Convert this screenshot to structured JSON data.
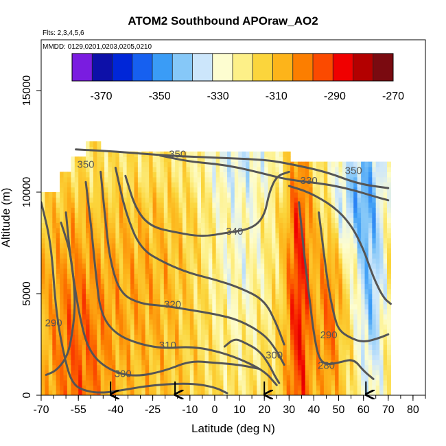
{
  "chart_data": {
    "type": "heatmap",
    "title": "ATOM2 Southbound APOraw_AO2",
    "subtitle_flights": "Flts: 2,3,4,5,6",
    "subtitle_dates": "MMDD: 0129,0201,0203,0205,0210",
    "xlabel": "Latitude (deg N)",
    "ylabel": "Altitude (m)",
    "xlim": [
      -70,
      85
    ],
    "ylim": [
      0,
      17500
    ],
    "x_ticks": [
      -70,
      -55,
      -40,
      -25,
      -10,
      0,
      10,
      20,
      30,
      40,
      50,
      60,
      70,
      80
    ],
    "x_tick_labels": [
      "-70",
      "-55",
      "-40",
      "-25",
      "-10",
      "0",
      "10",
      "20",
      "30",
      "40",
      "50",
      "60",
      "70",
      "80"
    ],
    "y_ticks": [
      0,
      5000,
      10000,
      15000
    ],
    "y_tick_labels": [
      "0",
      "5000",
      "10000",
      "15000"
    ],
    "colorbar": {
      "range": [
        -380,
        -270
      ],
      "ticks": [
        -370,
        -350,
        -330,
        -310,
        -290,
        -270
      ],
      "tick_labels": [
        "-370",
        "-350",
        "-330",
        "-310",
        "-290",
        "-270"
      ],
      "colors": [
        "#7a1ce0",
        "#0d10a8",
        "#0026d8",
        "#1660f0",
        "#3a9cf6",
        "#86c8f8",
        "#cce6fb",
        "#fdfdd0",
        "#fdf088",
        "#fbd53c",
        "#fdb41a",
        "#fc7e00",
        "#fb4a00",
        "#f00000",
        "#b30000",
        "#7a0a10"
      ]
    },
    "contour_labels": [
      {
        "text": "350",
        "x": -52,
        "y": 11200
      },
      {
        "text": "350",
        "x": -15,
        "y": 11700
      },
      {
        "text": "350",
        "x": 56,
        "y": 10900
      },
      {
        "text": "330",
        "x": 38,
        "y": 10400
      },
      {
        "text": "340",
        "x": 8,
        "y": 7900
      },
      {
        "text": "320",
        "x": -17,
        "y": 4300
      },
      {
        "text": "310",
        "x": -19,
        "y": 2300
      },
      {
        "text": "300",
        "x": -37,
        "y": 900
      },
      {
        "text": "300",
        "x": 24,
        "y": 1800
      },
      {
        "text": "290",
        "x": -65,
        "y": 3400
      },
      {
        "text": "290",
        "x": 46,
        "y": 2800
      },
      {
        "text": "280",
        "x": 45,
        "y": 1300
      }
    ],
    "arrows_latitude": [
      -42,
      -16,
      20,
      61
    ],
    "grid": false
  }
}
